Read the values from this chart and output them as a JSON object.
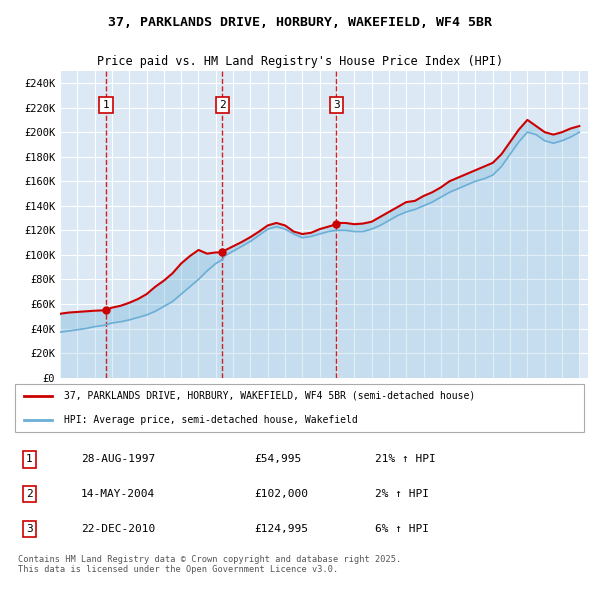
{
  "title": "37, PARKLANDS DRIVE, HORBURY, WAKEFIELD, WF4 5BR",
  "subtitle": "Price paid vs. HM Land Registry's House Price Index (HPI)",
  "background_color": "#dce9f5",
  "plot_bg_color": "#dce9f5",
  "legend_line1": "37, PARKLANDS DRIVE, HORBURY, WAKEFIELD, WF4 5BR (semi-detached house)",
  "legend_line2": "HPI: Average price, semi-detached house, Wakefield",
  "transactions": [
    {
      "num": 1,
      "date": "28-AUG-1997",
      "price": "£54,995",
      "hpi": "21% ↑ HPI",
      "year": 1997.65,
      "price_val": 54995
    },
    {
      "num": 2,
      "date": "14-MAY-2004",
      "price": "£102,000",
      "hpi": "2% ↑ HPI",
      "year": 2004.37,
      "price_val": 102000
    },
    {
      "num": 3,
      "date": "22-DEC-2010",
      "price": "£124,995",
      "hpi": "6% ↑ HPI",
      "year": 2010.97,
      "price_val": 124995
    }
  ],
  "footer": "Contains HM Land Registry data © Crown copyright and database right 2025.\nThis data is licensed under the Open Government Licence v3.0.",
  "shared_x": [
    1995.0,
    1995.5,
    1996.0,
    1996.5,
    1997.0,
    1997.5,
    1997.65,
    1998.0,
    1998.5,
    1999.0,
    1999.5,
    2000.0,
    2000.5,
    2001.0,
    2001.5,
    2002.0,
    2002.5,
    2003.0,
    2003.5,
    2004.0,
    2004.37,
    2004.5,
    2005.0,
    2005.5,
    2006.0,
    2006.5,
    2007.0,
    2007.5,
    2008.0,
    2008.5,
    2009.0,
    2009.5,
    2010.0,
    2010.5,
    2010.97,
    2011.0,
    2011.5,
    2012.0,
    2012.5,
    2013.0,
    2013.5,
    2014.0,
    2014.5,
    2015.0,
    2015.5,
    2016.0,
    2016.5,
    2017.0,
    2017.5,
    2018.0,
    2018.5,
    2019.0,
    2019.5,
    2020.0,
    2020.5,
    2021.0,
    2021.5,
    2022.0,
    2022.5,
    2023.0,
    2023.5,
    2024.0,
    2024.5,
    2025.0
  ],
  "hpi_y": [
    37000,
    38000,
    39000,
    40000,
    41500,
    42500,
    43000,
    44500,
    45500,
    47000,
    49000,
    51000,
    54000,
    58000,
    62000,
    68000,
    74000,
    80000,
    87000,
    93000,
    96000,
    99000,
    103000,
    107000,
    111000,
    116000,
    121000,
    123000,
    121000,
    117000,
    114000,
    115000,
    117000,
    119000,
    120000,
    120000,
    120000,
    119000,
    119000,
    121000,
    124000,
    128000,
    132000,
    135000,
    137000,
    140000,
    143000,
    147000,
    151000,
    154000,
    157000,
    160000,
    162000,
    165000,
    172000,
    182000,
    192000,
    200000,
    198000,
    193000,
    191000,
    193000,
    196000,
    200000
  ],
  "red_y": [
    52000,
    53000,
    53500,
    54000,
    54500,
    54800,
    54995,
    57000,
    58500,
    61000,
    64000,
    68000,
    74000,
    79000,
    85000,
    93000,
    99000,
    104000,
    101000,
    102000,
    102000,
    103500,
    107000,
    110500,
    114500,
    119000,
    124000,
    126000,
    124000,
    119000,
    117000,
    118000,
    121000,
    123000,
    124995,
    126000,
    126000,
    125000,
    125500,
    127000,
    131000,
    135000,
    139000,
    143000,
    144000,
    148000,
    151000,
    155000,
    160000,
    163000,
    166000,
    169000,
    172000,
    175000,
    182000,
    192000,
    202000,
    210000,
    205000,
    200000,
    198000,
    200000,
    203000,
    205000
  ],
  "ylim": [
    0,
    250000
  ],
  "xlim": [
    1995,
    2025.5
  ],
  "yticks": [
    0,
    20000,
    40000,
    60000,
    80000,
    100000,
    120000,
    140000,
    160000,
    180000,
    200000,
    220000,
    240000
  ],
  "ytick_labels": [
    "£0",
    "£20K",
    "£40K",
    "£60K",
    "£80K",
    "£100K",
    "£120K",
    "£140K",
    "£160K",
    "£180K",
    "£200K",
    "£220K",
    "£240K"
  ],
  "xticks": [
    1995,
    1996,
    1997,
    1998,
    1999,
    2000,
    2001,
    2002,
    2003,
    2004,
    2005,
    2006,
    2007,
    2008,
    2009,
    2010,
    2011,
    2012,
    2013,
    2014,
    2015,
    2016,
    2017,
    2018,
    2019,
    2020,
    2021,
    2022,
    2023,
    2024,
    2025
  ],
  "red_color": "#cc0000",
  "blue_color": "#6baed6",
  "blue_fill_color": "#c6dbef"
}
